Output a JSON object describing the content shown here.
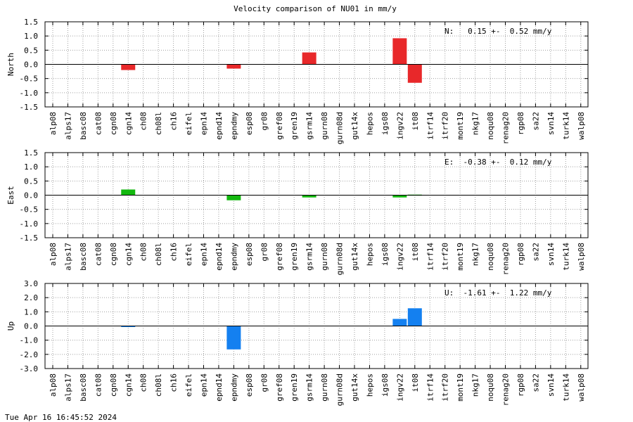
{
  "footer_timestamp": "Tue Apr 16 16:45:52 2024",
  "chart_data": {
    "type": "bar",
    "title": "Velocity comparison of NU01 in mm/y",
    "categories": [
      "alp08",
      "alps17",
      "basc08",
      "cat08",
      "cgn08",
      "cgn14",
      "ch08",
      "ch08l",
      "ch16",
      "eifel",
      "epn14",
      "epnd14",
      "epndmy",
      "esp08",
      "gr08",
      "gref08",
      "gren19",
      "gsrm14",
      "gurn08",
      "gurn08d",
      "gut14x",
      "hepos",
      "igs08",
      "ingv22",
      "it08",
      "itrf14",
      "itrf20",
      "mont19",
      "nkg17",
      "noqu08",
      "renag20",
      "rgp08",
      "sa22",
      "svn14",
      "turk14",
      "walp08"
    ],
    "grid": true,
    "panels": [
      {
        "ylabel": "North",
        "ylim": [
          -1.5,
          1.5
        ],
        "yticks": [
          "1.5",
          "1.0",
          "0.5",
          "0.0",
          "-0.5",
          "-1.0",
          "-1.5"
        ],
        "annotation": "N:   0.15 +-  0.52 mm/y",
        "color": "#e8282a",
        "values": [
          0,
          0,
          0,
          0,
          0,
          -0.2,
          0,
          0,
          0,
          0,
          0,
          0,
          -0.15,
          0,
          0,
          0,
          0,
          0.42,
          0,
          0,
          0,
          0,
          0,
          0.92,
          -0.65,
          0,
          0,
          0,
          0,
          0,
          0,
          0,
          0,
          0,
          0,
          0
        ]
      },
      {
        "ylabel": "East",
        "ylim": [
          -1.5,
          1.5
        ],
        "yticks": [
          "1.5",
          "1.0",
          "0.5",
          "0.0",
          "-0.5",
          "-1.0",
          "-1.5"
        ],
        "annotation": "E:  -0.38 +-  0.12 mm/y",
        "color": "#13b80f",
        "values": [
          0,
          0,
          0,
          0,
          0,
          0.2,
          0,
          0,
          0,
          0,
          0,
          0,
          -0.18,
          0,
          0,
          0,
          0,
          -0.08,
          0,
          0,
          0,
          0,
          0,
          -0.08,
          0.02,
          0,
          0,
          0,
          0,
          0,
          0,
          0,
          0,
          0,
          0,
          0
        ]
      },
      {
        "ylabel": "Up",
        "ylim": [
          -3.0,
          3.0
        ],
        "yticks": [
          "3.0",
          "2.0",
          "1.0",
          "0.0",
          "-1.0",
          "-2.0",
          "-3.0"
        ],
        "annotation": "U:  -1.61 +-  1.22 mm/y",
        "color": "#1480f0",
        "values": [
          0,
          0,
          0,
          0,
          0,
          -0.05,
          0,
          0,
          0,
          0,
          0,
          0,
          -1.65,
          0,
          0,
          0,
          0,
          0,
          0,
          0,
          0,
          0,
          0,
          0.5,
          1.25,
          0,
          0,
          0,
          0,
          0,
          0,
          0,
          0,
          0,
          0,
          0
        ]
      }
    ]
  }
}
